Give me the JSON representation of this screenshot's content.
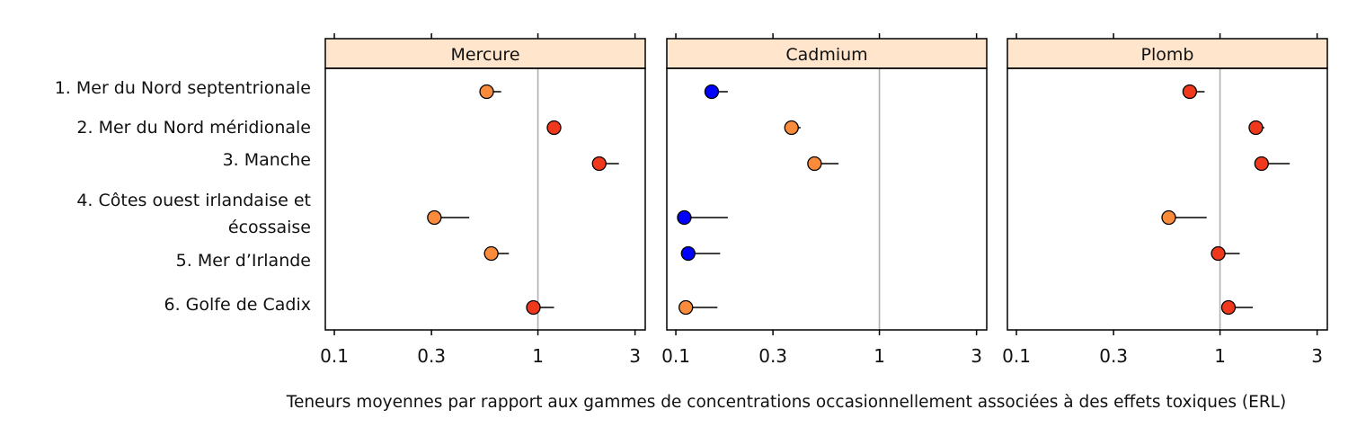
{
  "chart_data": {
    "type": "dot-errorbar",
    "xlabel": "Teneurs moyennes par rapport aux gammes de concentrations occasionnellement associées à des effets toxiques (ERL)",
    "xscale": "log",
    "xlim": [
      0.095,
      3.2
    ],
    "xticks": [
      {
        "value": 0.1,
        "label": "0.1"
      },
      {
        "value": 0.3,
        "label": "0.3"
      },
      {
        "value": 1,
        "label": "1"
      },
      {
        "value": 3,
        "label": "3"
      }
    ],
    "reference_line": 1,
    "regions": [
      {
        "label": "1. Mer du Nord septentrionale"
      },
      {
        "label": "2. Mer du Nord méridionale"
      },
      {
        "label": "3. Manche"
      },
      {
        "label": "4. Côtes ouest irlandaise et",
        "label2": "écossaise"
      },
      {
        "label": "5. Mer d’Irlande"
      },
      {
        "label": "6. Golfe de Cadix"
      }
    ],
    "panels": [
      {
        "title": "Mercure",
        "points": [
          {
            "region": 1,
            "mean": 0.56,
            "upper": 0.66,
            "color": "#F98B3B"
          },
          {
            "region": 2,
            "mean": 1.2,
            "upper": 1.3,
            "color": "#F0391C"
          },
          {
            "region": 3,
            "mean": 2.0,
            "upper": 2.5,
            "color": "#F0391C"
          },
          {
            "region": 4,
            "mean": 0.31,
            "upper": 0.46,
            "color": "#F98B3B"
          },
          {
            "region": 5,
            "mean": 0.59,
            "upper": 0.72,
            "color": "#F98B3B"
          },
          {
            "region": 6,
            "mean": 0.95,
            "upper": 1.2,
            "color": "#F0391C"
          }
        ]
      },
      {
        "title": "Cadmium",
        "points": [
          {
            "region": 1,
            "mean": 0.15,
            "upper": 0.18,
            "color": "#0000FF"
          },
          {
            "region": 2,
            "mean": 0.37,
            "upper": 0.41,
            "color": "#F98B3B"
          },
          {
            "region": 3,
            "mean": 0.48,
            "upper": 0.63,
            "color": "#F98B3B"
          },
          {
            "region": 4,
            "mean": 0.11,
            "upper": 0.18,
            "color": "#0000FF"
          },
          {
            "region": 5,
            "mean": 0.115,
            "upper": 0.165,
            "color": "#0000FF"
          },
          {
            "region": 6,
            "mean": 0.112,
            "upper": 0.16,
            "color": "#F98B3B"
          }
        ]
      },
      {
        "title": "Plomb",
        "points": [
          {
            "region": 1,
            "mean": 0.71,
            "upper": 0.84,
            "color": "#F0391C"
          },
          {
            "region": 2,
            "mean": 1.5,
            "upper": 1.65,
            "color": "#F0391C"
          },
          {
            "region": 3,
            "mean": 1.6,
            "upper": 2.2,
            "color": "#F0391C"
          },
          {
            "region": 4,
            "mean": 0.56,
            "upper": 0.86,
            "color": "#F98B3B"
          },
          {
            "region": 5,
            "mean": 0.98,
            "upper": 1.25,
            "color": "#F0391C"
          },
          {
            "region": 6,
            "mean": 1.1,
            "upper": 1.45,
            "color": "#F0391C"
          }
        ]
      }
    ],
    "colors": {
      "strip": "#FFE5CC",
      "reference_line": "#B0B0B0",
      "frame": "#000000"
    }
  }
}
